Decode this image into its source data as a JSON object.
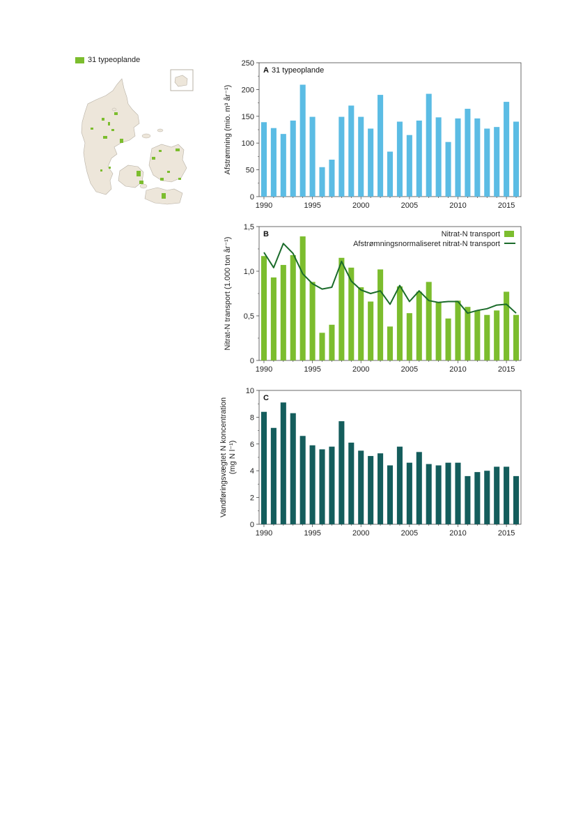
{
  "map": {
    "legend_label": "31 typeoplande",
    "colors": {
      "land": "#ede6da",
      "catchment": "#7cbd2e",
      "outline": "#b7b0a4"
    }
  },
  "chart_data": [
    {
      "type": "bar",
      "panel_letter": "A",
      "title": "31 typeoplande",
      "ylabel": "Afstrømning (mio. m³ år⁻¹)",
      "ylim": [
        0,
        250
      ],
      "yticks": [
        0,
        50,
        100,
        150,
        200,
        250
      ],
      "ytick_labels": [
        "0",
        "50",
        "100",
        "150",
        "200",
        "250"
      ],
      "xticks": [
        1990,
        1995,
        2000,
        2005,
        2010,
        2015
      ],
      "x": [
        1990,
        1991,
        1992,
        1993,
        1994,
        1995,
        1996,
        1997,
        1998,
        1999,
        2000,
        2001,
        2002,
        2003,
        2004,
        2005,
        2006,
        2007,
        2008,
        2009,
        2010,
        2011,
        2012,
        2013,
        2014,
        2015,
        2016
      ],
      "values": [
        139,
        128,
        117,
        142,
        209,
        149,
        55,
        69,
        149,
        170,
        149,
        127,
        190,
        84,
        140,
        115,
        142,
        192,
        148,
        102,
        146,
        164,
        146,
        127,
        130,
        177,
        140
      ],
      "color": "#5bbce4",
      "grid": false
    },
    {
      "type": "bar+line",
      "panel_letter": "B",
      "ylabel": "Nitrat-N transport (1.000 ton år⁻¹)",
      "ylim": [
        0,
        1.5
      ],
      "yticks": [
        0,
        0.5,
        1.0,
        1.5
      ],
      "ytick_labels": [
        "0",
        "0,5",
        "1,0",
        "1,5"
      ],
      "xticks": [
        1990,
        1995,
        2000,
        2005,
        2010,
        2015
      ],
      "x": [
        1990,
        1991,
        1992,
        1993,
        1994,
        1995,
        1996,
        1997,
        1998,
        1999,
        2000,
        2001,
        2002,
        2003,
        2004,
        2005,
        2006,
        2007,
        2008,
        2009,
        2010,
        2011,
        2012,
        2013,
        2014,
        2015,
        2016
      ],
      "legend_position": "top-right",
      "series": [
        {
          "name": "Nitrat-N transport",
          "kind": "bar",
          "color": "#7cbd2e",
          "values": [
            1.17,
            0.93,
            1.07,
            1.18,
            1.39,
            0.88,
            0.31,
            0.4,
            1.15,
            1.04,
            0.82,
            0.66,
            1.02,
            0.38,
            0.83,
            0.53,
            0.77,
            0.88,
            0.65,
            0.47,
            0.67,
            0.6,
            0.56,
            0.51,
            0.56,
            0.77,
            0.51
          ]
        },
        {
          "name": "Afstrømningsnormaliseret nitrat-N transport",
          "kind": "line",
          "color": "#1a6b2a",
          "values": [
            1.21,
            1.04,
            1.31,
            1.2,
            0.97,
            0.86,
            0.8,
            0.82,
            1.11,
            0.89,
            0.79,
            0.75,
            0.78,
            0.63,
            0.84,
            0.66,
            0.78,
            0.67,
            0.65,
            0.66,
            0.66,
            0.53,
            0.56,
            0.58,
            0.62,
            0.63,
            0.53
          ]
        }
      ],
      "grid": false
    },
    {
      "type": "bar",
      "panel_letter": "C",
      "ylabel_lines": [
        "Vandføringsvægtet N koncentration",
        "(mg N l⁻¹)"
      ],
      "ylim": [
        0,
        10
      ],
      "yticks": [
        0,
        2,
        4,
        6,
        8,
        10
      ],
      "ytick_labels": [
        "0",
        "2",
        "4",
        "6",
        "8",
        "10"
      ],
      "xticks": [
        1990,
        1995,
        2000,
        2005,
        2010,
        2015
      ],
      "x": [
        1990,
        1991,
        1992,
        1993,
        1994,
        1995,
        1996,
        1997,
        1998,
        1999,
        2000,
        2001,
        2002,
        2003,
        2004,
        2005,
        2006,
        2007,
        2008,
        2009,
        2010,
        2011,
        2012,
        2013,
        2014,
        2015,
        2016
      ],
      "values": [
        8.4,
        7.2,
        9.1,
        8.3,
        6.6,
        5.9,
        5.6,
        5.8,
        7.7,
        6.1,
        5.5,
        5.1,
        5.3,
        4.4,
        5.8,
        4.6,
        5.4,
        4.5,
        4.4,
        4.6,
        4.6,
        3.6,
        3.9,
        4.0,
        4.3,
        4.3,
        3.6
      ],
      "color": "#145d5c",
      "grid": false
    }
  ]
}
